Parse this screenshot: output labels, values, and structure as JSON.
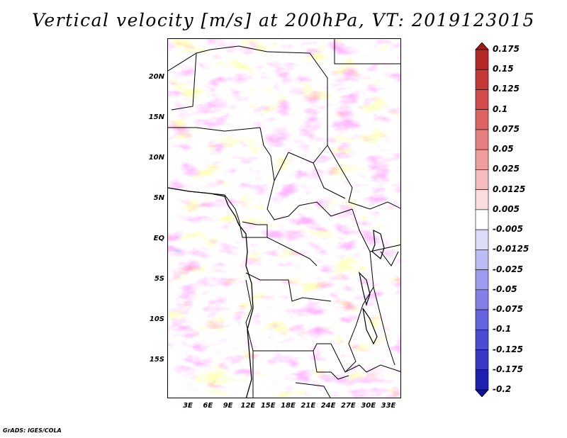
{
  "title": "Vertical velocity [m/s] at 200hPa, VT: 2019123015",
  "credit": "GrADS: IGES/COLA",
  "map": {
    "variable": "vertical velocity",
    "level": "200hPa",
    "valid_time": "2019123015",
    "region": "Central / Southern Africa",
    "lon_range": [
      0,
      35
    ],
    "lat_range": [
      -20,
      24
    ],
    "lat_labels": [
      "20N",
      "15N",
      "10N",
      "5N",
      "EQ",
      "5S",
      "10S",
      "15S"
    ],
    "lon_labels": [
      "3E",
      "6E",
      "9E",
      "12E",
      "15E",
      "18E",
      "21E",
      "24E",
      "27E",
      "30E",
      "33E"
    ]
  },
  "colorbar": {
    "labels": [
      "0.175",
      "0.15",
      "0.125",
      "0.1",
      "0.075",
      "0.05",
      "0.025",
      "0.0125",
      "0.005",
      "-0.005",
      "-0.0125",
      "-0.025",
      "-0.05",
      "-0.075",
      "-0.1",
      "-0.125",
      "-0.175",
      "-0.2"
    ],
    "colors": [
      "#a01818",
      "#b42828",
      "#c43838",
      "#d24c4c",
      "#de6464",
      "#e68080",
      "#ee9c9c",
      "#f4bcbc",
      "#fadcdc",
      "#ffffff",
      "#dcdcfa",
      "#bcbcf4",
      "#9c9cee",
      "#8080e6",
      "#6464de",
      "#4c4cd2",
      "#3838c4",
      "#2020b0",
      "#1010a0"
    ]
  }
}
